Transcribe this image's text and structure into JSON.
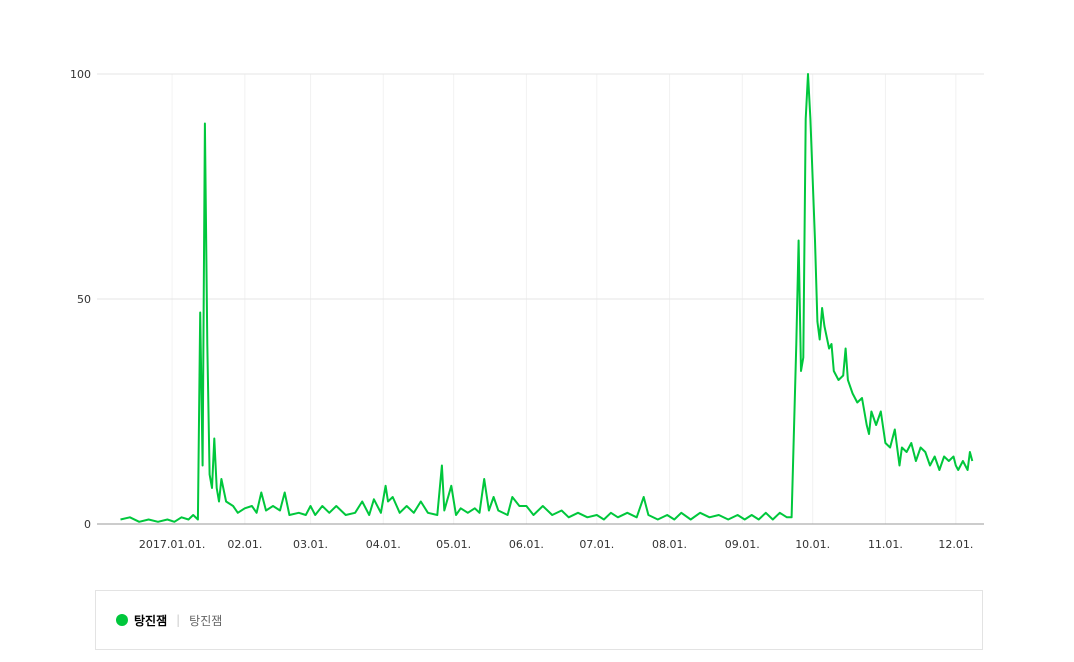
{
  "chart_data": {
    "type": "line",
    "x": [
      "2016-12-10",
      "2016-12-14",
      "2016-12-18",
      "2016-12-22",
      "2016-12-26",
      "2016-12-30",
      "2017-01-02",
      "2017-01-05",
      "2017-01-08",
      "2017-01-10",
      "2017-01-12",
      "2017-01-13",
      "2017-01-14",
      "2017-01-15",
      "2017-01-16",
      "2017-01-17",
      "2017-01-18",
      "2017-01-19",
      "2017-01-20",
      "2017-01-21",
      "2017-01-22",
      "2017-01-24",
      "2017-01-27",
      "2017-01-29",
      "2017-02-01",
      "2017-02-04",
      "2017-02-06",
      "2017-02-08",
      "2017-02-10",
      "2017-02-13",
      "2017-02-16",
      "2017-02-18",
      "2017-02-20",
      "2017-02-24",
      "2017-02-27",
      "2017-03-01",
      "2017-03-03",
      "2017-03-06",
      "2017-03-09",
      "2017-03-12",
      "2017-03-16",
      "2017-03-20",
      "2017-03-23",
      "2017-03-26",
      "2017-03-28",
      "2017-03-31",
      "2017-04-02",
      "2017-04-03",
      "2017-04-05",
      "2017-04-08",
      "2017-04-11",
      "2017-04-14",
      "2017-04-17",
      "2017-04-20",
      "2017-04-24",
      "2017-04-26",
      "2017-04-27",
      "2017-04-30",
      "2017-05-02",
      "2017-05-04",
      "2017-05-07",
      "2017-05-10",
      "2017-05-12",
      "2017-05-14",
      "2017-05-16",
      "2017-05-18",
      "2017-05-20",
      "2017-05-24",
      "2017-05-26",
      "2017-05-29",
      "2017-06-01",
      "2017-06-04",
      "2017-06-08",
      "2017-06-12",
      "2017-06-16",
      "2017-06-19",
      "2017-06-23",
      "2017-06-27",
      "2017-07-01",
      "2017-07-04",
      "2017-07-07",
      "2017-07-10",
      "2017-07-14",
      "2017-07-18",
      "2017-07-21",
      "2017-07-23",
      "2017-07-27",
      "2017-07-31",
      "2017-08-03",
      "2017-08-06",
      "2017-08-10",
      "2017-08-14",
      "2017-08-18",
      "2017-08-22",
      "2017-08-26",
      "2017-08-30",
      "2017-09-02",
      "2017-09-05",
      "2017-09-08",
      "2017-09-11",
      "2017-09-14",
      "2017-09-17",
      "2017-09-20",
      "2017-09-22",
      "2017-09-24",
      "2017-09-25",
      "2017-09-26",
      "2017-09-27",
      "2017-09-28",
      "2017-09-29",
      "2017-09-30",
      "2017-10-02",
      "2017-10-03",
      "2017-10-04",
      "2017-10-05",
      "2017-10-06",
      "2017-10-08",
      "2017-10-09",
      "2017-10-10",
      "2017-10-12",
      "2017-10-14",
      "2017-10-15",
      "2017-10-16",
      "2017-10-18",
      "2017-10-20",
      "2017-10-22",
      "2017-10-24",
      "2017-10-25",
      "2017-10-26",
      "2017-10-28",
      "2017-10-30",
      "2017-11-01",
      "2017-11-03",
      "2017-11-05",
      "2017-11-07",
      "2017-11-08",
      "2017-11-10",
      "2017-11-12",
      "2017-11-14",
      "2017-11-16",
      "2017-11-18",
      "2017-11-20",
      "2017-11-22",
      "2017-11-24",
      "2017-11-26",
      "2017-11-28",
      "2017-11-30",
      "2017-12-01",
      "2017-12-02",
      "2017-12-04",
      "2017-12-06",
      "2017-12-07",
      "2017-12-08"
    ],
    "series": [
      {
        "name": "탕진잼",
        "keyword": "탕진잼",
        "color": "#00c73c",
        "values": [
          1,
          1.5,
          0.5,
          1,
          0.5,
          1,
          0.5,
          1.5,
          1,
          2,
          1,
          47,
          13,
          89,
          40,
          11,
          8,
          19,
          8,
          5,
          10,
          5,
          4,
          2.5,
          3.5,
          4,
          2.5,
          7,
          3,
          4,
          3,
          7,
          2,
          2.5,
          2,
          4,
          2,
          4,
          2.5,
          4,
          2,
          2.5,
          5,
          2,
          5.5,
          2.5,
          8.5,
          5,
          6,
          2.5,
          4,
          2.5,
          5,
          2.5,
          2,
          13,
          3,
          8.5,
          2,
          3.5,
          2.5,
          3.5,
          2.5,
          10,
          3,
          6,
          3,
          2,
          6,
          4,
          4,
          2,
          4,
          2,
          3,
          1.5,
          2.5,
          1.5,
          2,
          1,
          2.5,
          1.5,
          2.5,
          1.5,
          6,
          2,
          1,
          2,
          1,
          2.5,
          1,
          2.5,
          1.5,
          2,
          1,
          2,
          1,
          2,
          1,
          2.5,
          1,
          2.5,
          1.5,
          1.5,
          40,
          63,
          34,
          37,
          90,
          100,
          90,
          63,
          45,
          41,
          48,
          44,
          39,
          40,
          34,
          32,
          33,
          39,
          32,
          29,
          27,
          28,
          22,
          20,
          25,
          22,
          25,
          18,
          17,
          21,
          13,
          17,
          16,
          18,
          14,
          17,
          16,
          13,
          15,
          12,
          15,
          14,
          15,
          13,
          12,
          14,
          12,
          16,
          14
        ]
      }
    ],
    "xlim": [
      "2016-11-30",
      "2017-12-13"
    ],
    "xticks": [
      {
        "value": "2017-01-01",
        "label": "2017.01.01."
      },
      {
        "value": "2017-02-01",
        "label": "02.01."
      },
      {
        "value": "2017-03-01",
        "label": "03.01."
      },
      {
        "value": "2017-04-01",
        "label": "04.01."
      },
      {
        "value": "2017-05-01",
        "label": "05.01."
      },
      {
        "value": "2017-06-01",
        "label": "06.01."
      },
      {
        "value": "2017-07-01",
        "label": "07.01."
      },
      {
        "value": "2017-08-01",
        "label": "08.01."
      },
      {
        "value": "2017-09-01",
        "label": "09.01."
      },
      {
        "value": "2017-10-01",
        "label": "10.01."
      },
      {
        "value": "2017-11-01",
        "label": "11.01."
      },
      {
        "value": "2017-12-01",
        "label": "12.01."
      }
    ],
    "ylim": [
      0,
      100
    ],
    "yticks": [
      0,
      50,
      100
    ],
    "grid": true
  }
}
